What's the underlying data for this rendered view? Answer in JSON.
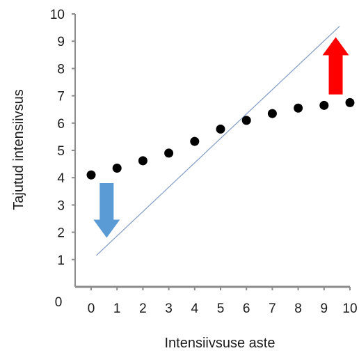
{
  "chart_data": {
    "type": "scatter",
    "title": "",
    "xlabel": "Intensiivsuse aste",
    "ylabel": "Tajutud intensiivsus",
    "xlim": [
      0,
      10
    ],
    "ylim": [
      0,
      10
    ],
    "origin_label": "0",
    "x_ticks": [
      "0",
      "1",
      "2",
      "3",
      "4",
      "5",
      "6",
      "7",
      "8",
      "9",
      "10"
    ],
    "y_ticks": [
      "1",
      "2",
      "3",
      "4",
      "5",
      "6",
      "7",
      "8",
      "9",
      "10"
    ],
    "grid": false,
    "legend": "none",
    "series": [
      {
        "values": [
          {
            "x": 0,
            "y": 4.1
          },
          {
            "x": 1,
            "y": 4.35
          },
          {
            "x": 2,
            "y": 4.62
          },
          {
            "x": 3,
            "y": 4.9
          },
          {
            "x": 4,
            "y": 5.33
          },
          {
            "x": 5,
            "y": 5.78
          },
          {
            "x": 6,
            "y": 6.1
          },
          {
            "x": 7,
            "y": 6.35
          },
          {
            "x": 8,
            "y": 6.55
          },
          {
            "x": 9,
            "y": 6.65
          },
          {
            "x": 10,
            "y": 6.75
          }
        ],
        "color": "#000000",
        "marker": "circle"
      }
    ],
    "reference_line": {
      "from": {
        "x": 0.2,
        "y": 1.15
      },
      "to": {
        "x": 9.6,
        "y": 9.55
      },
      "color": "#7f9bc7"
    },
    "annotations": [
      {
        "shape": "arrow-down",
        "color": "#5b9bd5",
        "x": 0.6,
        "y_from": 3.8,
        "y_to": 1.8
      },
      {
        "shape": "arrow-up",
        "color": "#ff0000",
        "x": 9.45,
        "y_from": 7.05,
        "y_to": 9.15
      }
    ],
    "colors": {
      "axis": "#8c8c8c",
      "points": "#000000",
      "reference_line": "#7f9bc7",
      "down_arrow": "#5b9bd5",
      "up_arrow": "#ff0000"
    }
  }
}
